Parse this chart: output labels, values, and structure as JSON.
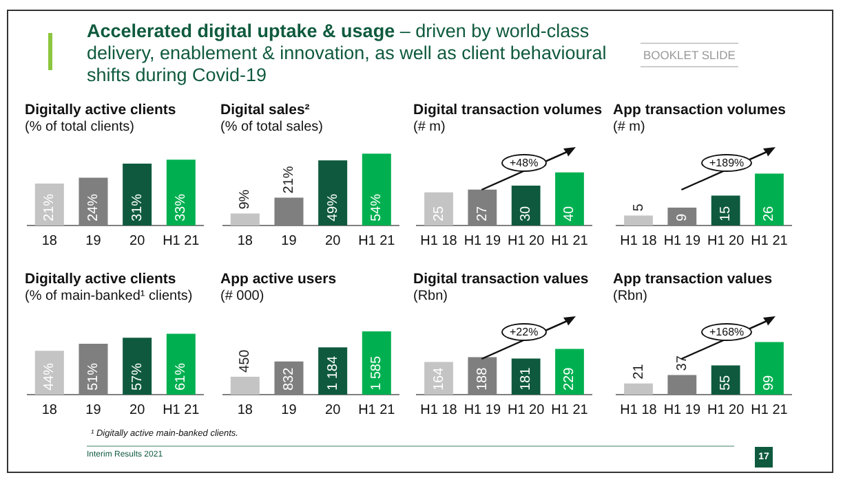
{
  "chart_data": [
    {
      "type": "other",
      "title": "Accelerated digital uptake & usage",
      "subtitle": "– driven by world-class delivery, enablement & innovation, as well as client behavioural shifts during Covid-19",
      "annotations": [
        "BOOKLET SLIDE",
        "¹ Digitally active main-banked clients.",
        "Interim Results 2021",
        "17"
      ]
    },
    {
      "type": "bar",
      "title": "Digitally active clients",
      "subtitle": "(% of total clients)",
      "categories": [
        "18",
        "19",
        "20",
        "H1 21"
      ],
      "values": [
        21,
        24,
        31,
        33
      ],
      "value_labels": [
        "21%",
        "24%",
        "31%",
        "33%"
      ],
      "colors": [
        "#c4c4c4",
        "#7f7f7f",
        "#0f5a3e",
        "#00b050"
      ],
      "tick_labels": "x"
    },
    {
      "type": "bar",
      "title": "Digital sales²",
      "subtitle": "(% of total sales)",
      "categories": [
        "18",
        "19",
        "20",
        "H1 21"
      ],
      "values": [
        9,
        21,
        49,
        54
      ],
      "value_labels": [
        "9%",
        "21%",
        "49%",
        "54%"
      ],
      "colors": [
        "#c4c4c4",
        "#7f7f7f",
        "#0f5a3e",
        "#00b050"
      ],
      "tick_labels": "x"
    },
    {
      "type": "bar",
      "title": "Digital transaction volumes",
      "subtitle": "(# m)",
      "categories": [
        "H1 18",
        "H1 19",
        "H1 20",
        "H1 21"
      ],
      "values": [
        25,
        27,
        30,
        40
      ],
      "value_labels": [
        "25",
        "27",
        "30",
        "40"
      ],
      "colors": [
        "#c4c4c4",
        "#7f7f7f",
        "#0f5a3e",
        "#00b050"
      ],
      "tick_labels": "x",
      "annotations": [
        "+48%"
      ]
    },
    {
      "type": "bar",
      "title": "App transaction volumes",
      "subtitle": "(# m)",
      "categories": [
        "H1 18",
        "H1 19",
        "H1 20",
        "H1 21"
      ],
      "values": [
        5,
        9,
        15,
        26
      ],
      "value_labels": [
        "5",
        "9",
        "15",
        "26"
      ],
      "colors": [
        "#c4c4c4",
        "#7f7f7f",
        "#0f5a3e",
        "#00b050"
      ],
      "tick_labels": "x",
      "annotations": [
        "+189%"
      ]
    },
    {
      "type": "bar",
      "title": "Digitally active clients",
      "subtitle": "(% of main-banked¹ clients)",
      "categories": [
        "18",
        "19",
        "20",
        "H1 21"
      ],
      "values": [
        44,
        51,
        57,
        61
      ],
      "value_labels": [
        "44%",
        "51%",
        "57%",
        "61%"
      ],
      "colors": [
        "#c4c4c4",
        "#7f7f7f",
        "#0f5a3e",
        "#00b050"
      ],
      "tick_labels": "x"
    },
    {
      "type": "bar",
      "title": "App active users",
      "subtitle": "(# 000)",
      "categories": [
        "18",
        "19",
        "20",
        "H1 21"
      ],
      "values": [
        450,
        832,
        1184,
        1585
      ],
      "value_labels": [
        "450",
        "832",
        "1 184",
        "1 585"
      ],
      "colors": [
        "#c4c4c4",
        "#7f7f7f",
        "#0f5a3e",
        "#00b050"
      ],
      "tick_labels": "x"
    },
    {
      "type": "bar",
      "title": "Digital transaction values",
      "subtitle": "(Rbn)",
      "categories": [
        "H1 18",
        "H1 19",
        "H1 20",
        "H1 21"
      ],
      "values": [
        164,
        188,
        181,
        229
      ],
      "value_labels": [
        "164",
        "188",
        "181",
        "229"
      ],
      "colors": [
        "#c4c4c4",
        "#7f7f7f",
        "#0f5a3e",
        "#00b050"
      ],
      "tick_labels": "x",
      "annotations": [
        "+22%"
      ]
    },
    {
      "type": "bar",
      "title": "App transaction values",
      "subtitle": "(Rbn)",
      "categories": [
        "H1 18",
        "H1 19",
        "H1 20",
        "H1 21"
      ],
      "values": [
        21,
        37,
        55,
        99
      ],
      "value_labels": [
        "21",
        "37",
        "55",
        "99"
      ],
      "colors": [
        "#c4c4c4",
        "#7f7f7f",
        "#0f5a3e",
        "#00b050"
      ],
      "tick_labels": "x",
      "annotations": [
        "+168%"
      ]
    }
  ]
}
